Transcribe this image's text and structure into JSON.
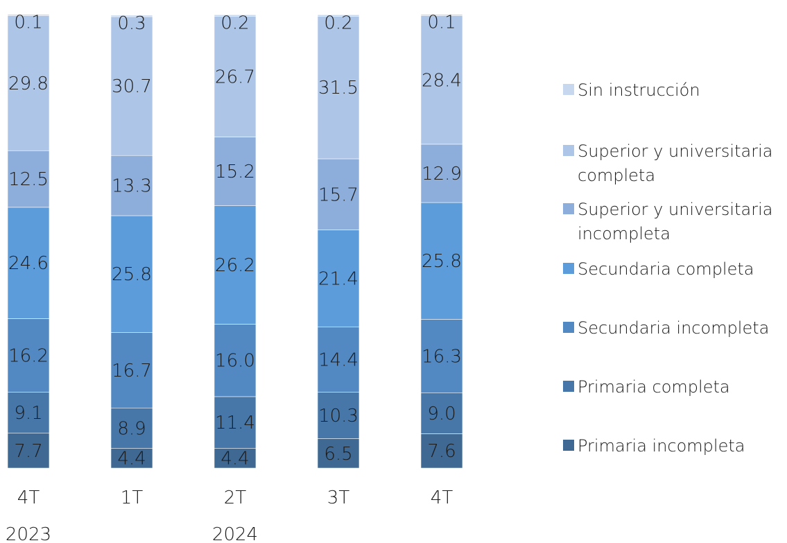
{
  "chart_data": {
    "type": "bar",
    "stacked": true,
    "categories": [
      "4T",
      "1T",
      "2T",
      "3T",
      "4T"
    ],
    "year_labels": [
      {
        "text": "2023",
        "category_index": 0
      },
      {
        "text": "2024",
        "category_index": 2
      }
    ],
    "series": [
      {
        "name": "Primaria incompleta",
        "color": "#3f6892",
        "values": [
          7.7,
          4.4,
          4.4,
          6.5,
          7.6
        ]
      },
      {
        "name": "Primaria completa",
        "color": "#4677a8",
        "values": [
          9.1,
          8.9,
          11.4,
          10.3,
          9.0
        ]
      },
      {
        "name": "Secundaria incompleta",
        "color": "#5289c2",
        "values": [
          16.2,
          16.7,
          16.0,
          14.4,
          16.3
        ]
      },
      {
        "name": "Secundaria completa",
        "color": "#5d9cda",
        "values": [
          24.6,
          25.8,
          26.2,
          21.4,
          25.8
        ]
      },
      {
        "name": "Superior y universitaria incompleta",
        "color": "#8daedb",
        "values": [
          12.5,
          13.3,
          15.2,
          15.7,
          12.9
        ]
      },
      {
        "name": "Superior y universitaria completa",
        "color": "#adc5e6",
        "values": [
          29.8,
          30.7,
          26.7,
          31.5,
          28.4
        ]
      },
      {
        "name": "Sin instrucción",
        "color": "#c7d7ee",
        "values": [
          0.1,
          0.3,
          0.2,
          0.2,
          0.1
        ]
      }
    ],
    "value_labels": [
      [
        "7.7",
        "4.4",
        "4.4",
        "6.5",
        "7.6"
      ],
      [
        "9.1",
        "8.9",
        "11.4",
        "10.3",
        "9.0"
      ],
      [
        "16.2",
        "16.7",
        "16.0",
        "14.4",
        "16.3"
      ],
      [
        "24.6",
        "25.8",
        "26.2",
        "21.4",
        "25.8"
      ],
      [
        "12.5",
        "13.3",
        "15.2",
        "15.7",
        "12.9"
      ],
      [
        "29.8",
        "30.7",
        "26.7",
        "31.5",
        "28.4"
      ],
      [
        "0.1",
        "0.3",
        "0.2",
        "0.2",
        "0.1"
      ]
    ],
    "legend": {
      "placement": "right",
      "order": [
        [
          "Sin instrucción"
        ],
        [
          "Superior y universitaria",
          "completa"
        ],
        [
          "Superior y universitaria",
          "incompleta"
        ],
        [
          "Secundaria completa"
        ],
        [
          "Secundaria incompleta"
        ],
        [
          "Primaria completa"
        ],
        [
          "Primaria incompleta"
        ]
      ],
      "series_index": [
        6,
        5,
        4,
        3,
        2,
        1,
        0
      ]
    },
    "ylim": [
      0,
      100
    ],
    "grid": false,
    "xlabel": "",
    "ylabel": ""
  }
}
